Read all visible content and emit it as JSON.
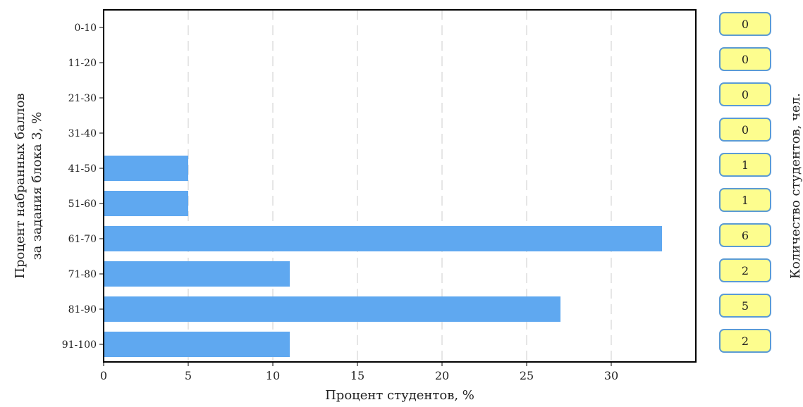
{
  "chart_data": {
    "type": "bar",
    "orientation": "horizontal",
    "categories": [
      "0-10",
      "11-20",
      "21-30",
      "31-40",
      "41-50",
      "51-60",
      "61-70",
      "71-80",
      "81-90",
      "91-100"
    ],
    "values": [
      0,
      0,
      0,
      0,
      5,
      5,
      33,
      11,
      27,
      11
    ],
    "counts": [
      "0",
      "0",
      "0",
      "0",
      "1",
      "1",
      "6",
      "2",
      "5",
      "2"
    ],
    "xlabel": "Процент студентов, %",
    "ylabel_lines": [
      "Процент набранных баллов",
      "за задания блока 3, %"
    ],
    "right_label": "Количество студентов, чел.",
    "x_ticks": [
      "0",
      "5",
      "10",
      "15",
      "20",
      "25",
      "30"
    ],
    "x_tick_values": [
      0,
      5,
      10,
      15,
      20,
      25,
      30
    ],
    "xlim": [
      0,
      35
    ],
    "grid": "vertical dashed",
    "colors": {
      "bar": "#5fa8f0",
      "grid": "#cccccc",
      "count_box_fill": "#fdfd8e",
      "count_box_border": "#5b9bd5"
    }
  }
}
